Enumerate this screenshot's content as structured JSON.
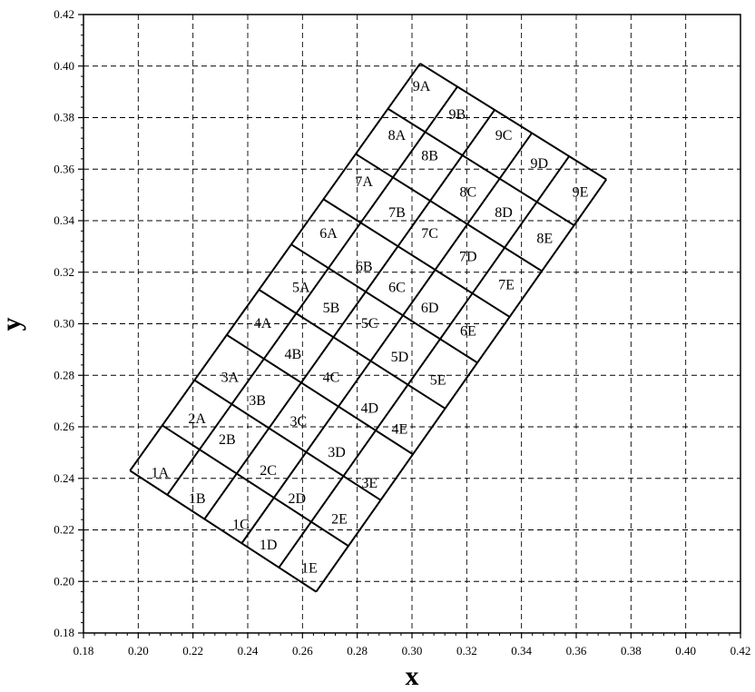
{
  "chart_data": {
    "type": "diagram",
    "xlabel": "x",
    "ylabel": "y",
    "xlim": [
      0.18,
      0.42
    ],
    "ylim": [
      0.18,
      0.42
    ],
    "xticks": [
      "0.18",
      "0.20",
      "0.22",
      "0.24",
      "0.26",
      "0.28",
      "0.30",
      "0.32",
      "0.34",
      "0.36",
      "0.38",
      "0.40",
      "0.42"
    ],
    "yticks": [
      "0.18",
      "0.20",
      "0.22",
      "0.24",
      "0.26",
      "0.28",
      "0.30",
      "0.32",
      "0.34",
      "0.36",
      "0.38",
      "0.40",
      "0.42"
    ],
    "grid": true,
    "grid_style": "dashed",
    "mesh": {
      "rows": [
        "1",
        "2",
        "3",
        "4",
        "5",
        "6",
        "7",
        "8",
        "9"
      ],
      "cols": [
        "A",
        "B",
        "C",
        "D",
        "E"
      ],
      "corner_ll": [
        0.197,
        0.243
      ],
      "corner_lr": [
        0.265,
        0.196
      ],
      "corner_ul": [
        0.303,
        0.401
      ],
      "corner_ur": [
        0.371,
        0.356
      ]
    },
    "cells": [
      {
        "label": "1A",
        "x": 0.208,
        "y": 0.2425
      },
      {
        "label": "1B",
        "x": 0.2215,
        "y": 0.2325
      },
      {
        "label": "1C",
        "x": 0.2375,
        "y": 0.2225
      },
      {
        "label": "1D",
        "x": 0.2475,
        "y": 0.2145
      },
      {
        "label": "1E",
        "x": 0.2625,
        "y": 0.2055
      },
      {
        "label": "2A",
        "x": 0.2215,
        "y": 0.2635
      },
      {
        "label": "2B",
        "x": 0.2325,
        "y": 0.2555
      },
      {
        "label": "2C",
        "x": 0.2475,
        "y": 0.2435
      },
      {
        "label": "2D",
        "x": 0.258,
        "y": 0.2325
      },
      {
        "label": "2E",
        "x": 0.2735,
        "y": 0.2245
      },
      {
        "label": "3A",
        "x": 0.2335,
        "y": 0.2795
      },
      {
        "label": "3B",
        "x": 0.2435,
        "y": 0.2705
      },
      {
        "label": "3C",
        "x": 0.2585,
        "y": 0.2625
      },
      {
        "label": "3D",
        "x": 0.2725,
        "y": 0.2505
      },
      {
        "label": "3E",
        "x": 0.2845,
        "y": 0.2385
      },
      {
        "label": "4A",
        "x": 0.2455,
        "y": 0.3005
      },
      {
        "label": "4B",
        "x": 0.2565,
        "y": 0.2885
      },
      {
        "label": "4C",
        "x": 0.2705,
        "y": 0.2795
      },
      {
        "label": "4D",
        "x": 0.2845,
        "y": 0.2675
      },
      {
        "label": "4E",
        "x": 0.2955,
        "y": 0.2595
      },
      {
        "label": "5A",
        "x": 0.2595,
        "y": 0.3145
      },
      {
        "label": "5B",
        "x": 0.2705,
        "y": 0.3065
      },
      {
        "label": "5C",
        "x": 0.2845,
        "y": 0.3005
      },
      {
        "label": "5D",
        "x": 0.2955,
        "y": 0.2875
      },
      {
        "label": "5E",
        "x": 0.3095,
        "y": 0.2785
      },
      {
        "label": "6A",
        "x": 0.2695,
        "y": 0.3355
      },
      {
        "label": "6B",
        "x": 0.2825,
        "y": 0.3225
      },
      {
        "label": "6C",
        "x": 0.2945,
        "y": 0.3145
      },
      {
        "label": "6D",
        "x": 0.3065,
        "y": 0.3065
      },
      {
        "label": "6E",
        "x": 0.3205,
        "y": 0.2975
      },
      {
        "label": "7A",
        "x": 0.2825,
        "y": 0.3555
      },
      {
        "label": "7B",
        "x": 0.2945,
        "y": 0.3435
      },
      {
        "label": "7C",
        "x": 0.3065,
        "y": 0.3355
      },
      {
        "label": "7D",
        "x": 0.3205,
        "y": 0.3265
      },
      {
        "label": "7E",
        "x": 0.3345,
        "y": 0.3155
      },
      {
        "label": "8A",
        "x": 0.2945,
        "y": 0.3735
      },
      {
        "label": "8B",
        "x": 0.3065,
        "y": 0.3655
      },
      {
        "label": "8C",
        "x": 0.3205,
        "y": 0.3515
      },
      {
        "label": "8D",
        "x": 0.3335,
        "y": 0.3435
      },
      {
        "label": "8E",
        "x": 0.3485,
        "y": 0.3335
      },
      {
        "label": "9A",
        "x": 0.3035,
        "y": 0.3925
      },
      {
        "label": "9B",
        "x": 0.3165,
        "y": 0.3815
      },
      {
        "label": "9C",
        "x": 0.3335,
        "y": 0.3735
      },
      {
        "label": "9D",
        "x": 0.3465,
        "y": 0.3625
      },
      {
        "label": "9E",
        "x": 0.3615,
        "y": 0.3515
      }
    ]
  }
}
